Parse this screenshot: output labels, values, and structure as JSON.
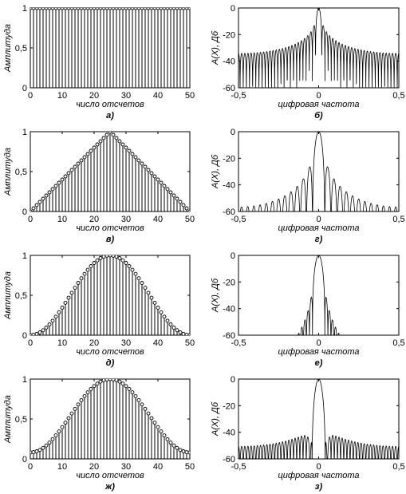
{
  "chart_data": [
    {
      "type": "stem",
      "panel": "a",
      "caption": "а)",
      "window": "rectangular",
      "xlabel": "число отсчетов",
      "ylabel": "Амплитуда",
      "xlim": [
        0,
        50
      ],
      "ylim": [
        0,
        1
      ],
      "xticks": [
        0,
        10,
        20,
        30,
        40,
        50
      ],
      "xtick_labels": [
        "0",
        "10",
        "20",
        "30",
        "40",
        "50"
      ],
      "yticks": [
        0,
        0.5,
        1
      ],
      "ytick_labels": [
        "0",
        "0,5",
        "1"
      ],
      "n": 51,
      "values": [
        1,
        1,
        1,
        1,
        1,
        1,
        1,
        1,
        1,
        1,
        1,
        1,
        1,
        1,
        1,
        1,
        1,
        1,
        1,
        1,
        1,
        1,
        1,
        1,
        1,
        1,
        1,
        1,
        1,
        1,
        1,
        1,
        1,
        1,
        1,
        1,
        1,
        1,
        1,
        1,
        1,
        1,
        1,
        1,
        1,
        1,
        1,
        1,
        1,
        1,
        1
      ]
    },
    {
      "type": "line",
      "panel": "b",
      "caption": "б)",
      "window": "rectangular",
      "xlabel": "цифровая частота",
      "ylabel": "А(Х), Дб",
      "xlim": [
        -0.5,
        0.5
      ],
      "ylim": [
        -60,
        0
      ],
      "xticks": [
        -0.5,
        0,
        0.5
      ],
      "xtick_labels": [
        "-0,5",
        "0",
        "0,5"
      ],
      "yticks": [
        0,
        -20,
        -40,
        -60
      ],
      "ytick_labels": [
        "0",
        "-20",
        "-40",
        "-60"
      ],
      "mainlobe_halfwidth": 0.0196,
      "sidelobe_peak_db": -13,
      "sidelobe_floor_db": -33
    },
    {
      "type": "stem",
      "panel": "v",
      "caption": "в)",
      "window": "triangular",
      "xlabel": "число отсчетов",
      "ylabel": "Амплитуда",
      "xlim": [
        0,
        50
      ],
      "ylim": [
        0,
        1
      ],
      "xticks": [
        0,
        10,
        20,
        30,
        40,
        50
      ],
      "xtick_labels": [
        "0",
        "10",
        "20",
        "30",
        "40",
        "50"
      ],
      "yticks": [
        0,
        0.5,
        1
      ],
      "ytick_labels": [
        "0",
        "0,5",
        "1"
      ],
      "n": 51,
      "values": [
        0,
        0.04,
        0.08,
        0.12,
        0.16,
        0.2,
        0.24,
        0.28,
        0.32,
        0.36,
        0.4,
        0.44,
        0.48,
        0.52,
        0.56,
        0.6,
        0.64,
        0.68,
        0.72,
        0.76,
        0.8,
        0.84,
        0.88,
        0.92,
        0.96,
        1,
        0.96,
        0.92,
        0.88,
        0.84,
        0.8,
        0.76,
        0.72,
        0.68,
        0.64,
        0.6,
        0.56,
        0.52,
        0.48,
        0.44,
        0.4,
        0.36,
        0.32,
        0.28,
        0.24,
        0.2,
        0.16,
        0.12,
        0.08,
        0.04,
        0
      ]
    },
    {
      "type": "line",
      "panel": "g",
      "caption": "г)",
      "window": "triangular",
      "xlabel": "цифровая частота",
      "ylabel": "А(Х), Дб",
      "xlim": [
        -0.5,
        0.5
      ],
      "ylim": [
        -60,
        0
      ],
      "xticks": [
        -0.5,
        0,
        0.5
      ],
      "xtick_labels": [
        "-0,5",
        "0",
        "0,5"
      ],
      "yticks": [
        0,
        -20,
        -40,
        -60
      ],
      "ytick_labels": [
        "0",
        "-20",
        "-40",
        "-60"
      ],
      "mainlobe_halfwidth": 0.04,
      "sidelobe_peak_db": -27,
      "sidelobe_floor_db": -58
    },
    {
      "type": "stem",
      "panel": "d",
      "caption": "д)",
      "window": "hann",
      "xlabel": "число отсчетов",
      "ylabel": "Амплитуда",
      "xlim": [
        0,
        50
      ],
      "ylim": [
        0,
        1
      ],
      "xticks": [
        0,
        10,
        20,
        30,
        40,
        50
      ],
      "xtick_labels": [
        "0",
        "10",
        "20",
        "30",
        "40",
        "50"
      ],
      "yticks": [
        0,
        0.5,
        1
      ],
      "ytick_labels": [
        "0",
        "0,5",
        "1"
      ],
      "n": 51,
      "values": [
        0,
        0.004,
        0.016,
        0.035,
        0.062,
        0.095,
        0.135,
        0.181,
        0.232,
        0.287,
        0.345,
        0.406,
        0.469,
        0.531,
        0.594,
        0.655,
        0.713,
        0.768,
        0.819,
        0.865,
        0.905,
        0.938,
        0.965,
        0.984,
        0.996,
        1,
        0.996,
        0.984,
        0.965,
        0.938,
        0.905,
        0.865,
        0.819,
        0.768,
        0.713,
        0.655,
        0.594,
        0.531,
        0.469,
        0.406,
        0.345,
        0.287,
        0.232,
        0.181,
        0.135,
        0.095,
        0.062,
        0.035,
        0.016,
        0.004,
        0
      ]
    },
    {
      "type": "line",
      "panel": "e",
      "caption": "е)",
      "window": "hann",
      "xlabel": "цифровая частота",
      "ylabel": "А(Х), Дб",
      "xlim": [
        -0.5,
        0.5
      ],
      "ylim": [
        -60,
        0
      ],
      "xticks": [
        -0.5,
        0,
        0.5
      ],
      "xtick_labels": [
        "-0,5",
        "0",
        "0,5"
      ],
      "yticks": [
        0,
        -20,
        -40,
        -60
      ],
      "ytick_labels": [
        "0",
        "-20",
        "-40",
        "-60"
      ],
      "mainlobe_halfwidth": 0.04,
      "sidelobe_peak_db": -31,
      "visible_extent": 0.13
    },
    {
      "type": "stem",
      "panel": "zh",
      "caption": "ж)",
      "window": "hamming",
      "xlabel": "число отсчетов",
      "ylabel": "Амплитуда",
      "xlim": [
        0,
        50
      ],
      "ylim": [
        0,
        1
      ],
      "xticks": [
        0,
        10,
        20,
        30,
        40,
        50
      ],
      "xtick_labels": [
        "0",
        "10",
        "20",
        "30",
        "40",
        "50"
      ],
      "yticks": [
        0,
        0.5,
        1
      ],
      "ytick_labels": [
        "0",
        "0,5",
        "1"
      ],
      "n": 51,
      "values": [
        0.08,
        0.084,
        0.095,
        0.112,
        0.137,
        0.168,
        0.204,
        0.246,
        0.294,
        0.344,
        0.398,
        0.454,
        0.511,
        0.569,
        0.626,
        0.682,
        0.736,
        0.786,
        0.834,
        0.876,
        0.912,
        0.943,
        0.968,
        0.986,
        0.996,
        1,
        0.996,
        0.986,
        0.968,
        0.943,
        0.912,
        0.876,
        0.834,
        0.786,
        0.736,
        0.682,
        0.626,
        0.569,
        0.511,
        0.454,
        0.398,
        0.344,
        0.294,
        0.246,
        0.204,
        0.168,
        0.137,
        0.112,
        0.095,
        0.084,
        0.08
      ]
    },
    {
      "type": "line",
      "panel": "z",
      "caption": "з)",
      "window": "hamming",
      "xlabel": "цифровая частота",
      "ylabel": "А(Х), Дб",
      "xlim": [
        -0.5,
        0.5
      ],
      "ylim": [
        -60,
        0
      ],
      "xticks": [
        -0.5,
        0,
        0.5
      ],
      "xtick_labels": [
        "-0,5",
        "0",
        "0,5"
      ],
      "yticks": [
        0,
        -20,
        -40,
        -60
      ],
      "ytick_labels": [
        "0",
        "-20",
        "-40",
        "-60"
      ],
      "mainlobe_halfwidth": 0.04,
      "sidelobe_peak_db": -43,
      "sidelobe_floor_db": -56
    }
  ]
}
